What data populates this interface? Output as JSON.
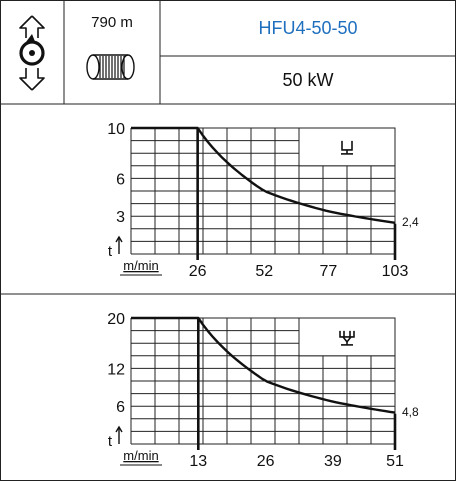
{
  "header": {
    "model": "HFU4-50-50",
    "power": "50 kW",
    "cable_length": "790 m",
    "rotation_icon": "rotation-direction-icon",
    "reel_icon": "cable-reel-icon"
  },
  "charts": [
    {
      "hook_icon": "single-hook-icon",
      "y_ticks": [
        "10",
        "6",
        "3"
      ],
      "y_unit": "t",
      "x_unit": "m/min",
      "x_ticks": [
        "26",
        "52",
        "77",
        "103"
      ],
      "end_value_label": "2,4"
    },
    {
      "hook_icon": "double-hook-icon",
      "y_ticks": [
        "20",
        "12",
        "6"
      ],
      "y_unit": "t",
      "x_unit": "m/min",
      "x_ticks": [
        "13",
        "26",
        "39",
        "51"
      ],
      "end_value_label": "4,8"
    }
  ],
  "chart_data": [
    {
      "type": "line",
      "x": [
        26,
        52,
        77,
        103
      ],
      "y": [
        10,
        5,
        3.4,
        2.4
      ],
      "xlim": [
        0,
        103
      ],
      "ylim": [
        0,
        10
      ],
      "xlabel": "m/min",
      "ylabel": "t",
      "grid": true
    },
    {
      "type": "line",
      "x": [
        13,
        26,
        39,
        51
      ],
      "y": [
        20,
        10,
        6.8,
        4.8
      ],
      "xlim": [
        0,
        51
      ],
      "ylim": [
        0,
        20
      ],
      "xlabel": "m/min",
      "ylabel": "t",
      "grid": true
    }
  ]
}
